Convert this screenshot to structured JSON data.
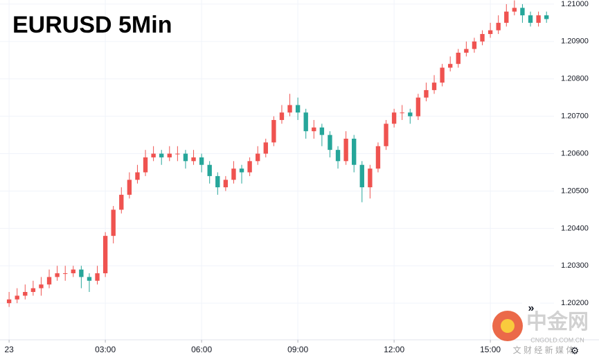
{
  "chart_data": {
    "type": "candlestick",
    "title": "EURUSD 5Min",
    "x": [
      0,
      15,
      30,
      45,
      60,
      75,
      90,
      105,
      120,
      135,
      150,
      165,
      180,
      195,
      210,
      225,
      240,
      255,
      270,
      285,
      300,
      315,
      330,
      345,
      360,
      375,
      390,
      405,
      420,
      435,
      450,
      465,
      480,
      495,
      510,
      525,
      540,
      555,
      570,
      585,
      600,
      615,
      630,
      645,
      660,
      675,
      690,
      705,
      720,
      735,
      750,
      765,
      780,
      795,
      810,
      825,
      840,
      855,
      870,
      885,
      900,
      915,
      930,
      945,
      960,
      975,
      990,
      1005
    ],
    "open": [
      1.202,
      1.2021,
      1.2022,
      1.2023,
      1.2024,
      1.2025,
      1.2027,
      1.2028,
      1.2028,
      1.2029,
      1.2027,
      1.2026,
      1.2028,
      1.2038,
      1.2045,
      1.2049,
      1.2053,
      1.2055,
      1.2059,
      1.206,
      1.2059,
      1.206,
      1.206,
      1.2058,
      1.2059,
      1.2057,
      1.2054,
      1.2051,
      1.2053,
      1.2056,
      1.2055,
      1.2058,
      1.206,
      1.2063,
      1.2069,
      1.2071,
      1.2073,
      1.2071,
      1.2066,
      1.2067,
      1.2065,
      1.2061,
      1.2058,
      1.2064,
      1.2057,
      1.2051,
      1.2056,
      1.2062,
      1.2068,
      1.2071,
      1.2071,
      1.207,
      1.2075,
      1.2077,
      1.2079,
      1.2083,
      1.2084,
      1.2087,
      1.2088,
      1.209,
      1.2092,
      1.2093,
      1.2095,
      1.2098,
      1.2099,
      1.2097,
      1.2095,
      1.2097
    ],
    "high": [
      1.2023,
      1.2024,
      1.2025,
      1.2026,
      1.2027,
      1.2029,
      1.203,
      1.203,
      1.203,
      1.203,
      1.2028,
      1.203,
      1.2039,
      1.2046,
      1.2051,
      1.2055,
      1.2057,
      1.2061,
      1.2062,
      1.2061,
      1.2062,
      1.2062,
      1.2061,
      1.2061,
      1.206,
      1.2058,
      1.2055,
      1.2054,
      1.2058,
      1.2057,
      1.2059,
      1.2062,
      1.2064,
      1.207,
      1.2073,
      1.2076,
      1.2075,
      1.2072,
      1.2069,
      1.2068,
      1.2066,
      1.2062,
      1.2066,
      1.2065,
      1.2058,
      1.2057,
      1.2063,
      1.2069,
      1.2072,
      1.2073,
      1.2072,
      1.2076,
      1.2079,
      1.2081,
      1.2084,
      1.2086,
      1.2088,
      1.209,
      1.2091,
      1.2093,
      1.2095,
      1.2097,
      1.21,
      1.2101,
      1.21,
      1.2098,
      1.2098,
      1.2098
    ],
    "low": [
      1.2019,
      1.202,
      1.2021,
      1.2022,
      1.2022,
      1.2024,
      1.2026,
      1.2026,
      1.2027,
      1.2024,
      1.2023,
      1.2025,
      1.2027,
      1.2036,
      1.2044,
      1.2048,
      1.2052,
      1.2054,
      1.2058,
      1.2057,
      1.2058,
      1.2058,
      1.2056,
      1.2057,
      1.2055,
      1.2052,
      1.2049,
      1.205,
      1.2052,
      1.2052,
      1.2054,
      1.2057,
      1.2059,
      1.2062,
      1.2068,
      1.207,
      1.2069,
      1.2064,
      1.2064,
      1.2062,
      1.2059,
      1.2056,
      1.2057,
      1.2055,
      1.2047,
      1.2048,
      1.2055,
      1.2061,
      1.2067,
      1.2069,
      1.2068,
      1.2069,
      1.2074,
      1.2076,
      1.2078,
      1.2082,
      1.2083,
      1.2086,
      1.2087,
      1.2089,
      1.2091,
      1.2092,
      1.2094,
      1.2097,
      1.2095,
      1.2094,
      1.2094,
      1.2095
    ],
    "close": [
      1.2021,
      1.2022,
      1.2023,
      1.2024,
      1.2025,
      1.2027,
      1.2028,
      1.2028,
      1.2029,
      1.2027,
      1.2026,
      1.2028,
      1.2038,
      1.2045,
      1.2049,
      1.2053,
      1.2055,
      1.2059,
      1.206,
      1.2059,
      1.206,
      1.206,
      1.2058,
      1.2059,
      1.2057,
      1.2054,
      1.2051,
      1.2053,
      1.2056,
      1.2055,
      1.2058,
      1.206,
      1.2063,
      1.2069,
      1.2071,
      1.2073,
      1.2071,
      1.2066,
      1.2067,
      1.2065,
      1.2061,
      1.2058,
      1.2064,
      1.2057,
      1.2051,
      1.2056,
      1.2062,
      1.2068,
      1.2071,
      1.2071,
      1.207,
      1.2075,
      1.2077,
      1.2079,
      1.2083,
      1.2084,
      1.2087,
      1.2088,
      1.209,
      1.2092,
      1.2093,
      1.2095,
      1.2098,
      1.2099,
      1.2097,
      1.2095,
      1.2097,
      1.2096
    ],
    "up_color": "#ef5350",
    "down_color": "#26a69a",
    "xlim": [
      -17,
      1019
    ],
    "xticks": [
      {
        "value": 0,
        "label": "23"
      },
      {
        "value": 180,
        "label": "03:00"
      },
      {
        "value": 360,
        "label": "06:00"
      },
      {
        "value": 540,
        "label": "09:00"
      },
      {
        "value": 720,
        "label": "12:00"
      },
      {
        "value": 900,
        "label": "15:00"
      }
    ],
    "ylim": [
      1.20102,
      1.21011
    ],
    "yticks": [
      {
        "value": 1.202,
        "label": "1.20200"
      },
      {
        "value": 1.203,
        "label": "1.20300"
      },
      {
        "value": 1.204,
        "label": "1.20400"
      },
      {
        "value": 1.205,
        "label": "1.20500"
      },
      {
        "value": 1.206,
        "label": "1.20600"
      },
      {
        "value": 1.207,
        "label": "1.20700"
      },
      {
        "value": 1.208,
        "label": "1.20800"
      },
      {
        "value": 1.209,
        "label": "1.20900"
      },
      {
        "value": 1.21,
        "label": "1.21000"
      }
    ],
    "grid": true,
    "watermark": {
      "brand": "中金网",
      "site": "CNGOLD.COM.CN",
      "tagline": "文 财 经 新 媒 体"
    }
  }
}
